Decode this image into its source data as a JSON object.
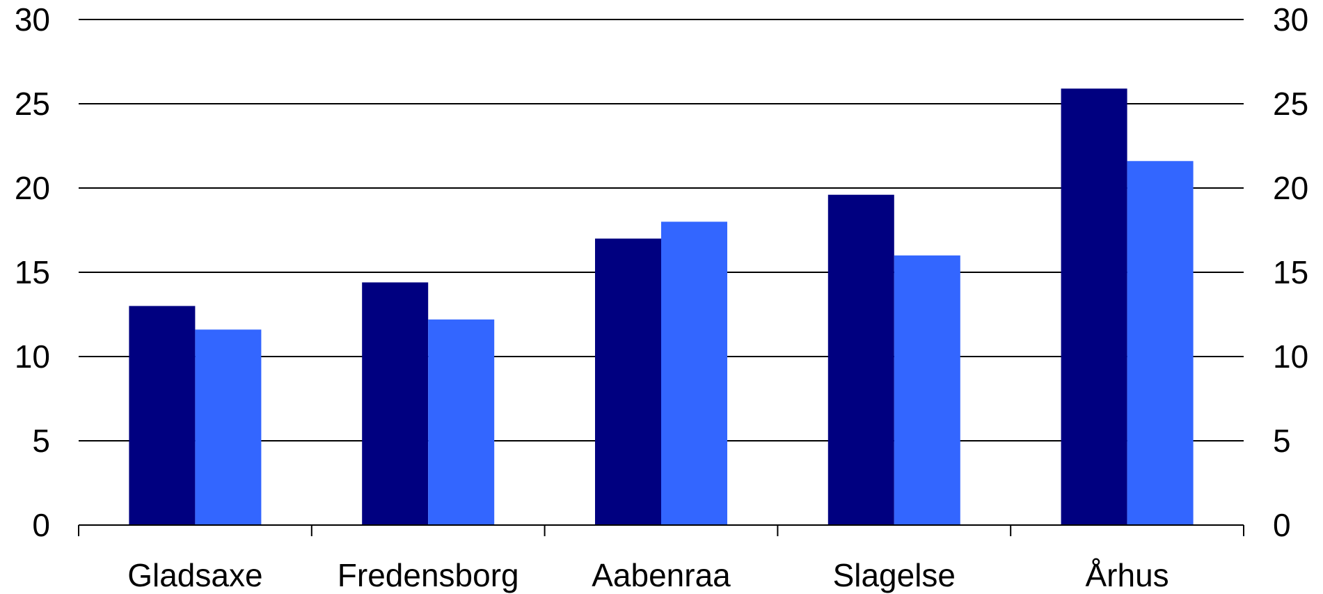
{
  "chart_data": {
    "type": "bar",
    "categories": [
      "Gladsaxe",
      "Fredensborg",
      "Aabenraa",
      "Slagelse",
      "Århus"
    ],
    "series": [
      {
        "values": [
          13.0,
          14.4,
          17.0,
          19.6,
          25.9
        ],
        "color": "#000080"
      },
      {
        "values": [
          11.6,
          12.2,
          18.0,
          16.0,
          21.6
        ],
        "color": "#3366FF"
      }
    ],
    "ylim": [
      0,
      30
    ],
    "yticks": [
      0,
      5,
      10,
      15,
      20,
      25,
      30
    ],
    "y_axis_right": true,
    "grid": true,
    "title": "",
    "xlabel": "",
    "ylabel": ""
  }
}
